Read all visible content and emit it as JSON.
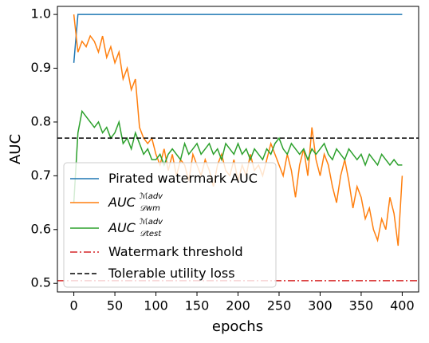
{
  "chart_data": {
    "type": "line",
    "x_label": "epochs",
    "y_label": "AUC",
    "x": [
      0,
      5,
      10,
      15,
      20,
      25,
      30,
      35,
      40,
      45,
      50,
      55,
      60,
      65,
      70,
      75,
      80,
      85,
      90,
      95,
      100,
      105,
      110,
      115,
      120,
      125,
      130,
      135,
      140,
      145,
      150,
      155,
      160,
      165,
      170,
      175,
      180,
      185,
      190,
      195,
      200,
      205,
      210,
      215,
      220,
      225,
      230,
      235,
      240,
      245,
      250,
      255,
      260,
      265,
      270,
      275,
      280,
      285,
      290,
      295,
      300,
      305,
      310,
      315,
      320,
      325,
      330,
      335,
      340,
      345,
      350,
      355,
      360,
      365,
      370,
      375,
      380,
      385,
      390,
      395,
      400
    ],
    "series": [
      {
        "name": "Pirated watermark AUC",
        "color": "#1f77b4",
        "values": [
          0.91,
          1.0,
          1.0,
          1.0,
          1.0,
          1.0,
          1.0,
          1.0,
          1.0,
          1.0,
          1.0,
          1.0,
          1.0,
          1.0,
          1.0,
          1.0,
          1.0,
          1.0,
          1.0,
          1.0,
          1.0,
          1.0,
          1.0,
          1.0,
          1.0,
          1.0,
          1.0,
          1.0,
          1.0,
          1.0,
          1.0,
          1.0,
          1.0,
          1.0,
          1.0,
          1.0,
          1.0,
          1.0,
          1.0,
          1.0,
          1.0,
          1.0,
          1.0,
          1.0,
          1.0,
          1.0,
          1.0,
          1.0,
          1.0,
          1.0,
          1.0,
          1.0,
          1.0,
          1.0,
          1.0,
          1.0,
          1.0,
          1.0,
          1.0,
          1.0,
          1.0,
          1.0,
          1.0,
          1.0,
          1.0,
          1.0,
          1.0,
          1.0,
          1.0,
          1.0,
          1.0,
          1.0,
          1.0,
          1.0,
          1.0,
          1.0,
          1.0,
          1.0,
          1.0,
          1.0,
          1.0
        ]
      },
      {
        "name": "AUC",
        "name_sup": "ℳadv",
        "name_sub": "𝒟wm",
        "color": "#ff7f0e",
        "values": [
          1.0,
          0.93,
          0.95,
          0.94,
          0.96,
          0.95,
          0.93,
          0.96,
          0.92,
          0.94,
          0.91,
          0.93,
          0.88,
          0.9,
          0.86,
          0.88,
          0.79,
          0.77,
          0.76,
          0.77,
          0.74,
          0.72,
          0.75,
          0.71,
          0.74,
          0.7,
          0.73,
          0.72,
          0.69,
          0.74,
          0.72,
          0.7,
          0.73,
          0.71,
          0.68,
          0.72,
          0.74,
          0.71,
          0.7,
          0.73,
          0.69,
          0.72,
          0.7,
          0.74,
          0.71,
          0.72,
          0.7,
          0.73,
          0.76,
          0.74,
          0.72,
          0.7,
          0.74,
          0.71,
          0.66,
          0.72,
          0.75,
          0.7,
          0.79,
          0.73,
          0.7,
          0.74,
          0.72,
          0.68,
          0.65,
          0.7,
          0.73,
          0.69,
          0.64,
          0.68,
          0.66,
          0.62,
          0.64,
          0.6,
          0.58,
          0.62,
          0.6,
          0.66,
          0.63,
          0.57,
          0.7
        ]
      },
      {
        "name": "AUC",
        "name_sup": "ℳadv",
        "name_sub": "𝒟test",
        "color": "#2ca02c",
        "values": [
          0.65,
          0.78,
          0.82,
          0.81,
          0.8,
          0.79,
          0.8,
          0.78,
          0.79,
          0.77,
          0.78,
          0.8,
          0.76,
          0.77,
          0.75,
          0.78,
          0.76,
          0.74,
          0.75,
          0.73,
          0.73,
          0.74,
          0.72,
          0.74,
          0.75,
          0.74,
          0.73,
          0.76,
          0.74,
          0.75,
          0.76,
          0.74,
          0.75,
          0.76,
          0.74,
          0.75,
          0.73,
          0.76,
          0.75,
          0.74,
          0.76,
          0.74,
          0.75,
          0.73,
          0.75,
          0.74,
          0.73,
          0.75,
          0.74,
          0.76,
          0.77,
          0.75,
          0.74,
          0.76,
          0.75,
          0.74,
          0.75,
          0.73,
          0.75,
          0.74,
          0.75,
          0.76,
          0.74,
          0.73,
          0.75,
          0.74,
          0.73,
          0.75,
          0.74,
          0.73,
          0.74,
          0.72,
          0.74,
          0.73,
          0.72,
          0.74,
          0.73,
          0.72,
          0.73,
          0.72,
          0.72
        ]
      }
    ],
    "hlines": [
      {
        "name": "Watermark threshold",
        "value": 0.505,
        "color": "#d62728",
        "style": "dashdot"
      },
      {
        "name": "Tolerable utility loss",
        "value": 0.77,
        "color": "#000000",
        "style": "dashed"
      }
    ],
    "xlim": [
      -20,
      420
    ],
    "xticks": [
      0,
      50,
      100,
      150,
      200,
      250,
      300,
      350,
      400
    ],
    "ylim": [
      0.484,
      1.015
    ],
    "yticks": [
      0.5,
      0.6,
      0.7,
      0.8,
      0.9,
      {
        "value": 1,
        "label": "1.0"
      }
    ],
    "legend": "lower left"
  }
}
